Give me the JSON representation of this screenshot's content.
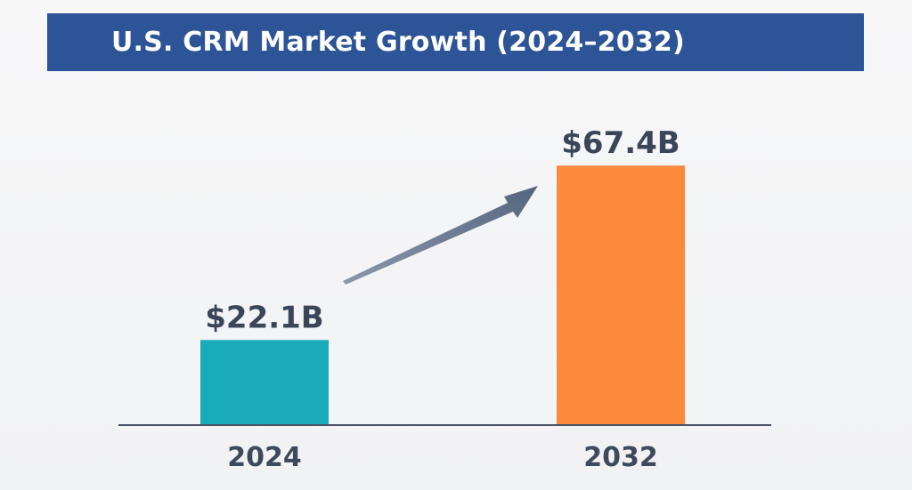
{
  "chart_data": {
    "type": "bar",
    "title": "U.S. CRM Market Growth (2024–2032)",
    "categories": [
      "2024",
      "2032"
    ],
    "values": [
      22.1,
      67.4
    ],
    "value_labels": [
      "$22.1B",
      "$67.4B"
    ],
    "unit": "$B",
    "colors": [
      "#1aabb9",
      "#fb8a3c"
    ],
    "xlabel": "",
    "ylabel": "",
    "ylim": [
      0,
      75
    ],
    "grid": false,
    "legend": "none",
    "annotation": "arrow-up-right"
  },
  "colors": {
    "banner": "#2c5496",
    "axis": "#4a5466",
    "arrow": "#657590"
  }
}
